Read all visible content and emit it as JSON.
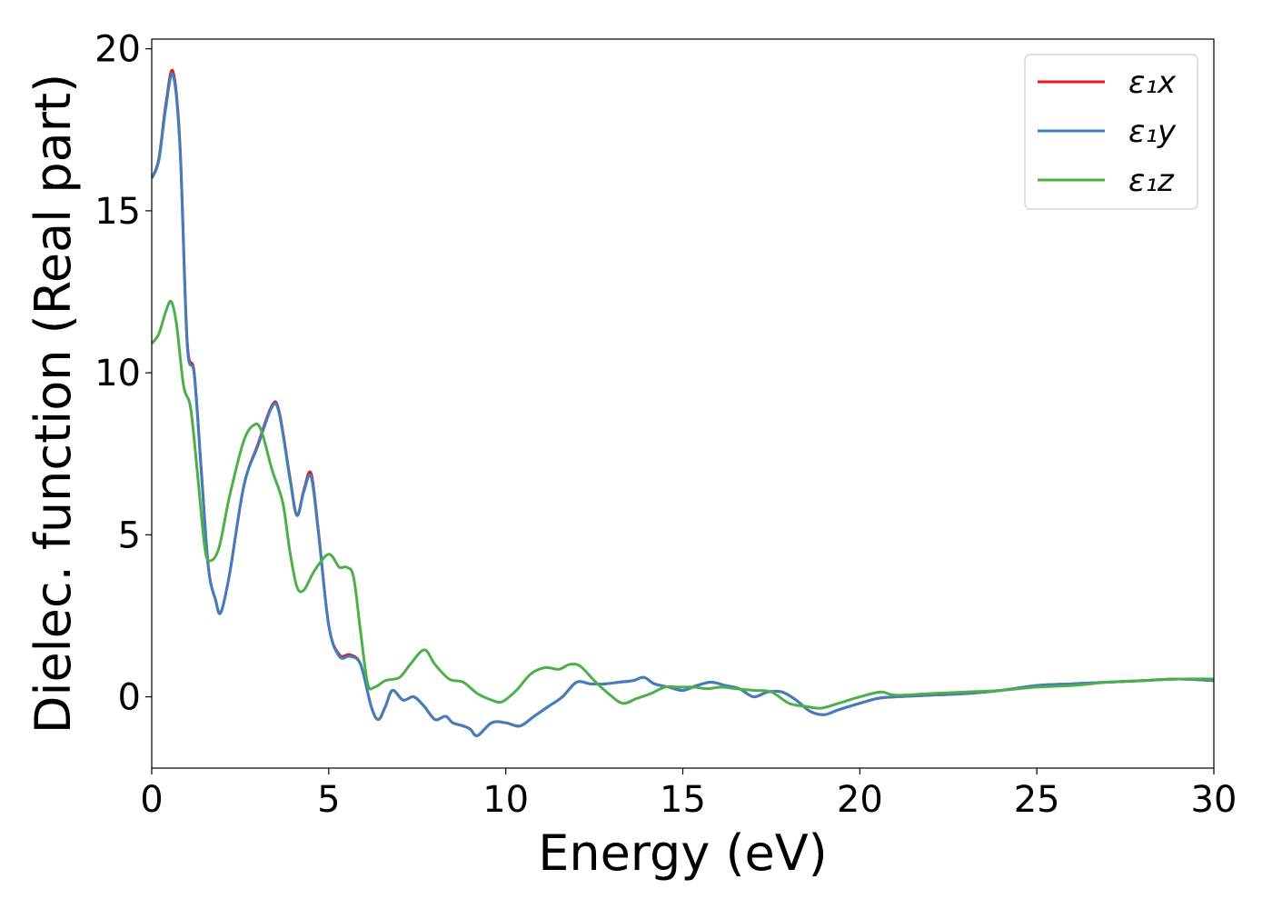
{
  "chart_data": {
    "type": "line",
    "title": "",
    "xlabel": "Energy (eV)",
    "ylabel": "Dielec. function (Real part)",
    "xlim": [
      0,
      30
    ],
    "ylim": [
      -2.2,
      20.3
    ],
    "xticks": [
      0,
      5,
      10,
      15,
      20,
      25,
      30
    ],
    "yticks": [
      0,
      5,
      10,
      15,
      20
    ],
    "grid": false,
    "legend_position": "top-right",
    "series": [
      {
        "name": "ε₁x",
        "color": "#e41a1c",
        "x": [
          0,
          0.2,
          0.4,
          0.6,
          0.8,
          1.0,
          1.2,
          1.4,
          1.6,
          1.8,
          1.95,
          2.2,
          2.6,
          3.0,
          3.4,
          3.6,
          3.9,
          4.1,
          4.3,
          4.5,
          4.7,
          5.0,
          5.3,
          5.6,
          5.9,
          6.2,
          6.4,
          6.6,
          6.8,
          7.1,
          7.4,
          7.7,
          8.0,
          8.3,
          8.5,
          8.8,
          9.0,
          9.2,
          9.6,
          10.0,
          10.4,
          10.8,
          11.2,
          11.6,
          12.0,
          12.4,
          12.8,
          13.2,
          13.6,
          13.9,
          14.2,
          14.6,
          15.0,
          15.4,
          15.8,
          16.2,
          16.6,
          17.0,
          17.4,
          17.8,
          18.2,
          18.6,
          19.0,
          19.4,
          20.0,
          20.5,
          21.0,
          22.0,
          23.0,
          24.0,
          25.0,
          26.0,
          27.0,
          28.0,
          29.0,
          30.0
        ],
        "y": [
          16.0,
          16.6,
          18.3,
          19.3,
          17.0,
          11.0,
          10.0,
          7.0,
          4.0,
          3.0,
          2.6,
          3.8,
          6.5,
          7.8,
          9.0,
          8.8,
          6.8,
          5.6,
          6.4,
          6.9,
          5.2,
          2.2,
          1.3,
          1.3,
          1.0,
          -0.3,
          -0.7,
          -0.3,
          0.2,
          -0.1,
          0.0,
          -0.3,
          -0.7,
          -0.6,
          -0.8,
          -0.9,
          -1.0,
          -1.2,
          -0.8,
          -0.8,
          -0.9,
          -0.6,
          -0.3,
          0.0,
          0.45,
          0.4,
          0.4,
          0.45,
          0.5,
          0.6,
          0.4,
          0.3,
          0.2,
          0.35,
          0.45,
          0.35,
          0.25,
          0.0,
          0.15,
          0.15,
          -0.1,
          -0.45,
          -0.55,
          -0.4,
          -0.2,
          -0.05,
          0.0,
          0.05,
          0.1,
          0.2,
          0.35,
          0.4,
          0.45,
          0.5,
          0.55,
          0.5
        ]
      },
      {
        "name": "ε₁y",
        "color": "#3f7fbf",
        "x": [
          0,
          0.2,
          0.4,
          0.6,
          0.8,
          1.0,
          1.2,
          1.4,
          1.6,
          1.8,
          1.95,
          2.2,
          2.6,
          3.0,
          3.4,
          3.6,
          3.9,
          4.1,
          4.3,
          4.5,
          4.7,
          5.0,
          5.3,
          5.6,
          5.9,
          6.2,
          6.4,
          6.6,
          6.8,
          7.1,
          7.4,
          7.7,
          8.0,
          8.3,
          8.5,
          8.8,
          9.0,
          9.2,
          9.6,
          10.0,
          10.4,
          10.8,
          11.2,
          11.6,
          12.0,
          12.4,
          12.8,
          13.2,
          13.6,
          13.9,
          14.2,
          14.6,
          15.0,
          15.4,
          15.8,
          16.2,
          16.6,
          17.0,
          17.4,
          17.8,
          18.2,
          18.6,
          19.0,
          19.4,
          20.0,
          20.5,
          21.0,
          22.0,
          23.0,
          24.0,
          25.0,
          26.0,
          27.0,
          28.0,
          29.0,
          30.0
        ],
        "y": [
          16.0,
          16.55,
          18.2,
          19.2,
          16.9,
          10.9,
          9.95,
          6.95,
          4.0,
          3.0,
          2.6,
          3.8,
          6.5,
          7.75,
          8.95,
          8.75,
          6.75,
          5.6,
          6.35,
          6.8,
          5.15,
          2.2,
          1.25,
          1.25,
          1.0,
          -0.3,
          -0.7,
          -0.3,
          0.2,
          -0.1,
          0.0,
          -0.3,
          -0.7,
          -0.6,
          -0.8,
          -0.9,
          -1.0,
          -1.2,
          -0.8,
          -0.8,
          -0.9,
          -0.6,
          -0.3,
          0.0,
          0.45,
          0.4,
          0.4,
          0.45,
          0.5,
          0.6,
          0.4,
          0.3,
          0.2,
          0.35,
          0.45,
          0.35,
          0.25,
          0.0,
          0.15,
          0.15,
          -0.1,
          -0.45,
          -0.55,
          -0.4,
          -0.2,
          -0.05,
          0.0,
          0.05,
          0.1,
          0.2,
          0.35,
          0.4,
          0.45,
          0.5,
          0.55,
          0.5
        ]
      },
      {
        "name": "ε₁z",
        "color": "#4daf4a",
        "x": [
          0,
          0.2,
          0.4,
          0.55,
          0.7,
          0.9,
          1.1,
          1.3,
          1.5,
          1.65,
          1.9,
          2.2,
          2.6,
          2.9,
          3.1,
          3.4,
          3.7,
          3.9,
          4.1,
          4.3,
          4.6,
          5.0,
          5.3,
          5.5,
          5.7,
          5.9,
          6.1,
          6.3,
          6.6,
          7.0,
          7.3,
          7.7,
          8.0,
          8.4,
          8.8,
          9.2,
          9.6,
          9.9,
          10.3,
          10.7,
          11.1,
          11.5,
          11.8,
          12.1,
          12.5,
          12.9,
          13.3,
          13.7,
          14.1,
          14.5,
          14.9,
          15.3,
          15.7,
          16.1,
          16.5,
          17.0,
          17.5,
          18.0,
          18.5,
          18.9,
          19.4,
          20.0,
          20.6,
          21.0,
          22.0,
          23.0,
          24.0,
          25.0,
          26.0,
          27.0,
          28.0,
          29.0,
          30.0
        ],
        "y": [
          10.9,
          11.2,
          11.9,
          12.2,
          11.5,
          9.6,
          8.9,
          6.8,
          4.6,
          4.2,
          4.6,
          6.2,
          7.9,
          8.4,
          8.2,
          7.0,
          6.0,
          4.5,
          3.4,
          3.3,
          3.9,
          4.4,
          4.0,
          4.0,
          3.7,
          2.0,
          0.4,
          0.3,
          0.5,
          0.6,
          1.0,
          1.45,
          1.0,
          0.55,
          0.45,
          0.1,
          -0.1,
          -0.15,
          0.2,
          0.7,
          0.9,
          0.85,
          1.0,
          0.95,
          0.5,
          0.1,
          -0.2,
          -0.05,
          0.1,
          0.3,
          0.3,
          0.3,
          0.25,
          0.3,
          0.25,
          0.2,
          0.15,
          -0.2,
          -0.3,
          -0.35,
          -0.2,
          0.0,
          0.15,
          0.05,
          0.1,
          0.15,
          0.2,
          0.3,
          0.35,
          0.45,
          0.5,
          0.55,
          0.55
        ]
      }
    ]
  }
}
